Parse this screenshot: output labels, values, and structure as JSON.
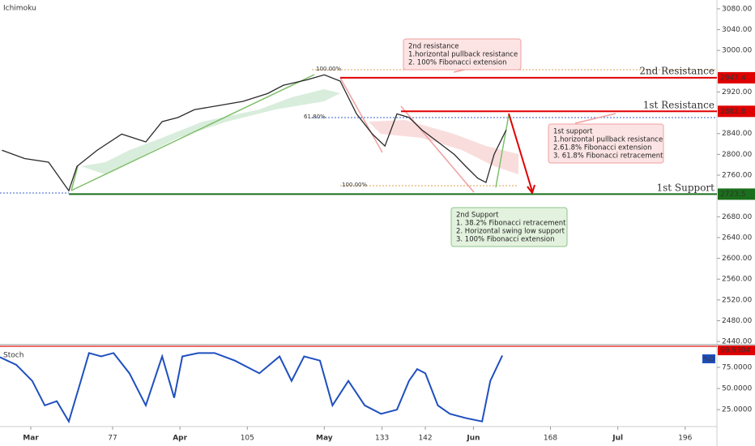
{
  "chart_data": [
    {
      "type": "line",
      "title": "Ichimoku",
      "color": "#2a2a2a",
      "x": [
        54,
        58.7,
        63.7,
        67.9,
        69.6,
        73.8,
        78.9,
        83.9,
        87.3,
        90.6,
        94.0,
        99.1,
        104.1,
        109.2,
        112.5,
        117.6,
        121.0,
        124.3,
        127.7,
        131.0,
        133.6,
        136.1,
        138.6,
        141.3,
        144.6,
        148.0,
        150.4,
        152.9,
        154.6,
        156.3,
        158.8
      ],
      "values": [
        2808,
        2792,
        2785,
        2730,
        2777,
        2808,
        2839,
        2824,
        2863,
        2871,
        2886,
        2894,
        2902,
        2917,
        2933,
        2944,
        2953,
        2941,
        2878,
        2839,
        2816,
        2878,
        2871,
        2847,
        2824,
        2800,
        2777,
        2754,
        2746,
        2800,
        2847
      ],
      "xlim": [
        53.6,
        202.6
      ],
      "xticks": [
        {
          "value": 60,
          "label": "Mar"
        },
        77,
        {
          "value": 91,
          "label": "Apr"
        },
        105,
        {
          "value": 121,
          "label": "May"
        },
        133,
        142,
        {
          "value": 152,
          "label": "Jun"
        },
        168,
        {
          "value": 182,
          "label": "Jul"
        },
        196
      ],
      "ylim": [
        2434,
        3097
      ],
      "yticks": [
        {
          "value": 2440,
          "label": "2440.00"
        },
        {
          "value": 2480,
          "label": "2480.00"
        },
        {
          "value": 2520,
          "label": "2520.00"
        },
        {
          "value": 2560,
          "label": "2560.00"
        },
        {
          "value": 2600,
          "label": "2600.00"
        },
        {
          "value": 2640,
          "label": "2640.00"
        },
        {
          "value": 2680,
          "label": "2680.00"
        },
        {
          "value": 2760,
          "label": "2760.00"
        },
        {
          "value": 2800,
          "label": "2800.00"
        },
        {
          "value": 2840,
          "label": "2840.00"
        },
        {
          "value": 2920,
          "label": "2920.00"
        },
        {
          "value": 3000,
          "label": "3000.00"
        },
        {
          "value": 3040,
          "label": "3040.00"
        },
        {
          "value": 3080,
          "label": "3080.00"
        }
      ],
      "levels": [
        {
          "name": "2nd Resistance",
          "value": 2947.4,
          "color": "#e00000"
        },
        {
          "name": "1st Resistance",
          "value": 2882.8,
          "color": "#e00000"
        },
        {
          "name": "1st Support",
          "value": 2723.5,
          "color": "#1b6e1b"
        }
      ],
      "fib_labels": [
        "100.00%",
        "61.80%",
        "100.00%"
      ],
      "annotations": [
        [
          "2nd resistance",
          "1.horizontal pullback resistance",
          "2. 100% Fibonacci extension"
        ],
        [
          "1st support",
          "1.horizontal pullback resistance",
          "2.61.8% Fibonacci extension",
          "3. 61.8% Fibonacci retracement"
        ],
        [
          "2nd Support",
          "1. 38.2% Fibonacci retracement",
          "2. Horizontal swing low support",
          "3. 100% Fibonacci extension"
        ]
      ]
    },
    {
      "type": "line",
      "title": "Stoch",
      "legend": "%D",
      "color": "#1f4fbf",
      "x": [
        53.6,
        57.0,
        60.3,
        62.9,
        65.4,
        67.9,
        70.4,
        72.1,
        74.6,
        77.2,
        80.5,
        83.9,
        87.3,
        89.8,
        91.5,
        94.8,
        98.2,
        102.4,
        107.5,
        111.7,
        114.2,
        116.8,
        120.1,
        122.7,
        126.0,
        129.4,
        132.8,
        136.1,
        138.6,
        140.3,
        142.0,
        144.6,
        147.1,
        150.4,
        153.8,
        155.5,
        158.0
      ],
      "values": [
        87,
        78,
        59,
        30,
        35,
        11,
        59,
        92,
        88,
        92,
        68,
        30,
        88,
        39,
        88,
        92,
        92,
        83,
        68,
        88,
        59,
        88,
        83,
        30,
        59,
        30,
        20,
        25,
        59,
        73,
        68,
        30,
        20,
        15,
        11,
        59,
        89
      ],
      "current": 99.9304,
      "ylim": [
        5,
        100
      ],
      "yticks": [
        {
          "value": 25,
          "label": "25.0000"
        },
        {
          "value": 50,
          "label": "50.0000"
        },
        {
          "value": 75,
          "label": "75.0000"
        }
      ]
    }
  ]
}
